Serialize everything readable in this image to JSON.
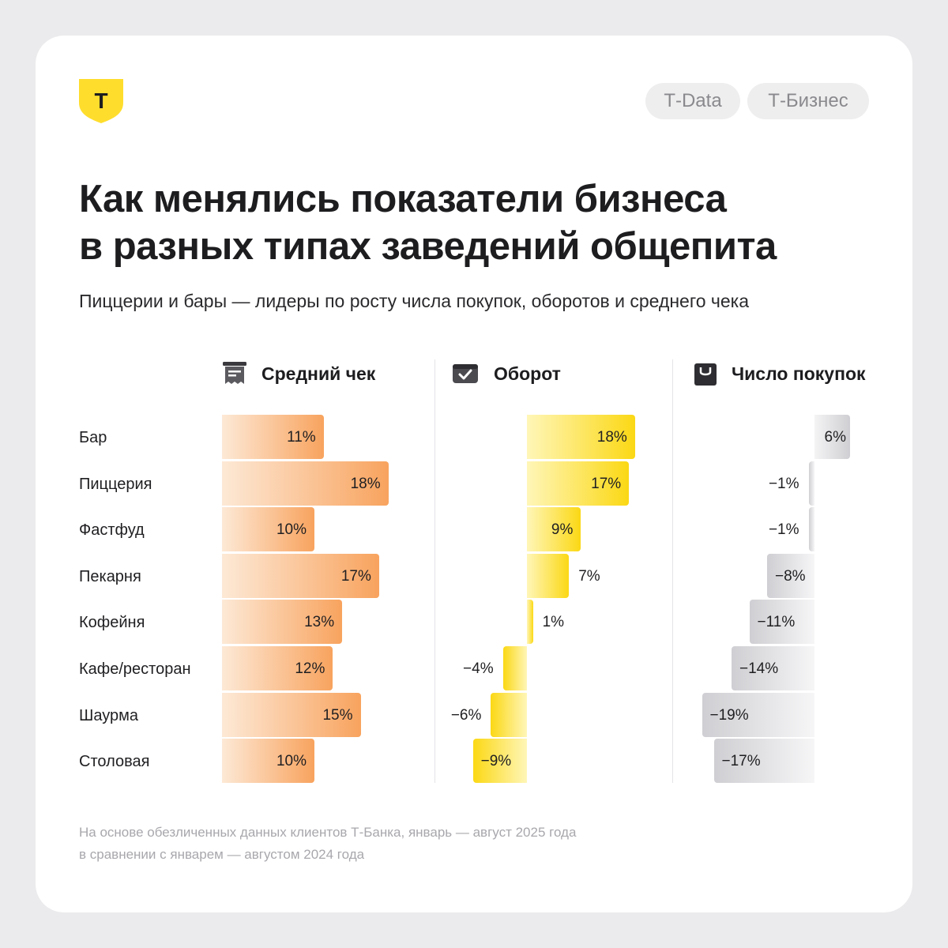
{
  "brand": {
    "logo_letter": "Т",
    "accent": "#FFDD2D"
  },
  "tags": [
    "Т-Data",
    "Т-Бизнес"
  ],
  "title_lines": [
    "Как менялись показатели бизнеса",
    "в разных типах заведений общепита"
  ],
  "subtitle": "Пиццерии и бары — лидеры по росту числа покупок, оборотов и среднего чека",
  "footnote_lines": [
    "На основе обезличенных данных клиентов Т-Банка, январь — август 2025 года",
    "в сравнении с январем — августом 2024 года"
  ],
  "chart_data": {
    "type": "bar",
    "orientation": "horizontal",
    "unit": "%",
    "categories": [
      "Бар",
      "Пиццерия",
      "Фастфуд",
      "Пекарня",
      "Кофейня",
      "Кафе/ресторан",
      "Шаурма",
      "Столовая"
    ],
    "series": [
      {
        "name": "Средний чек",
        "icon": "receipt-icon",
        "color": "#F8A35E",
        "values": [
          11,
          18,
          10,
          17,
          13,
          12,
          15,
          10
        ]
      },
      {
        "name": "Оборот",
        "icon": "wallet-icon",
        "color": "#FBD814",
        "values": [
          18,
          17,
          9,
          7,
          1,
          -4,
          -6,
          -9
        ]
      },
      {
        "name": "Число покупок",
        "icon": "shopping-bag-icon",
        "color": "#CFCFD3",
        "values": [
          6,
          -1,
          -1,
          -8,
          -11,
          -14,
          -19,
          -17
        ]
      }
    ]
  }
}
